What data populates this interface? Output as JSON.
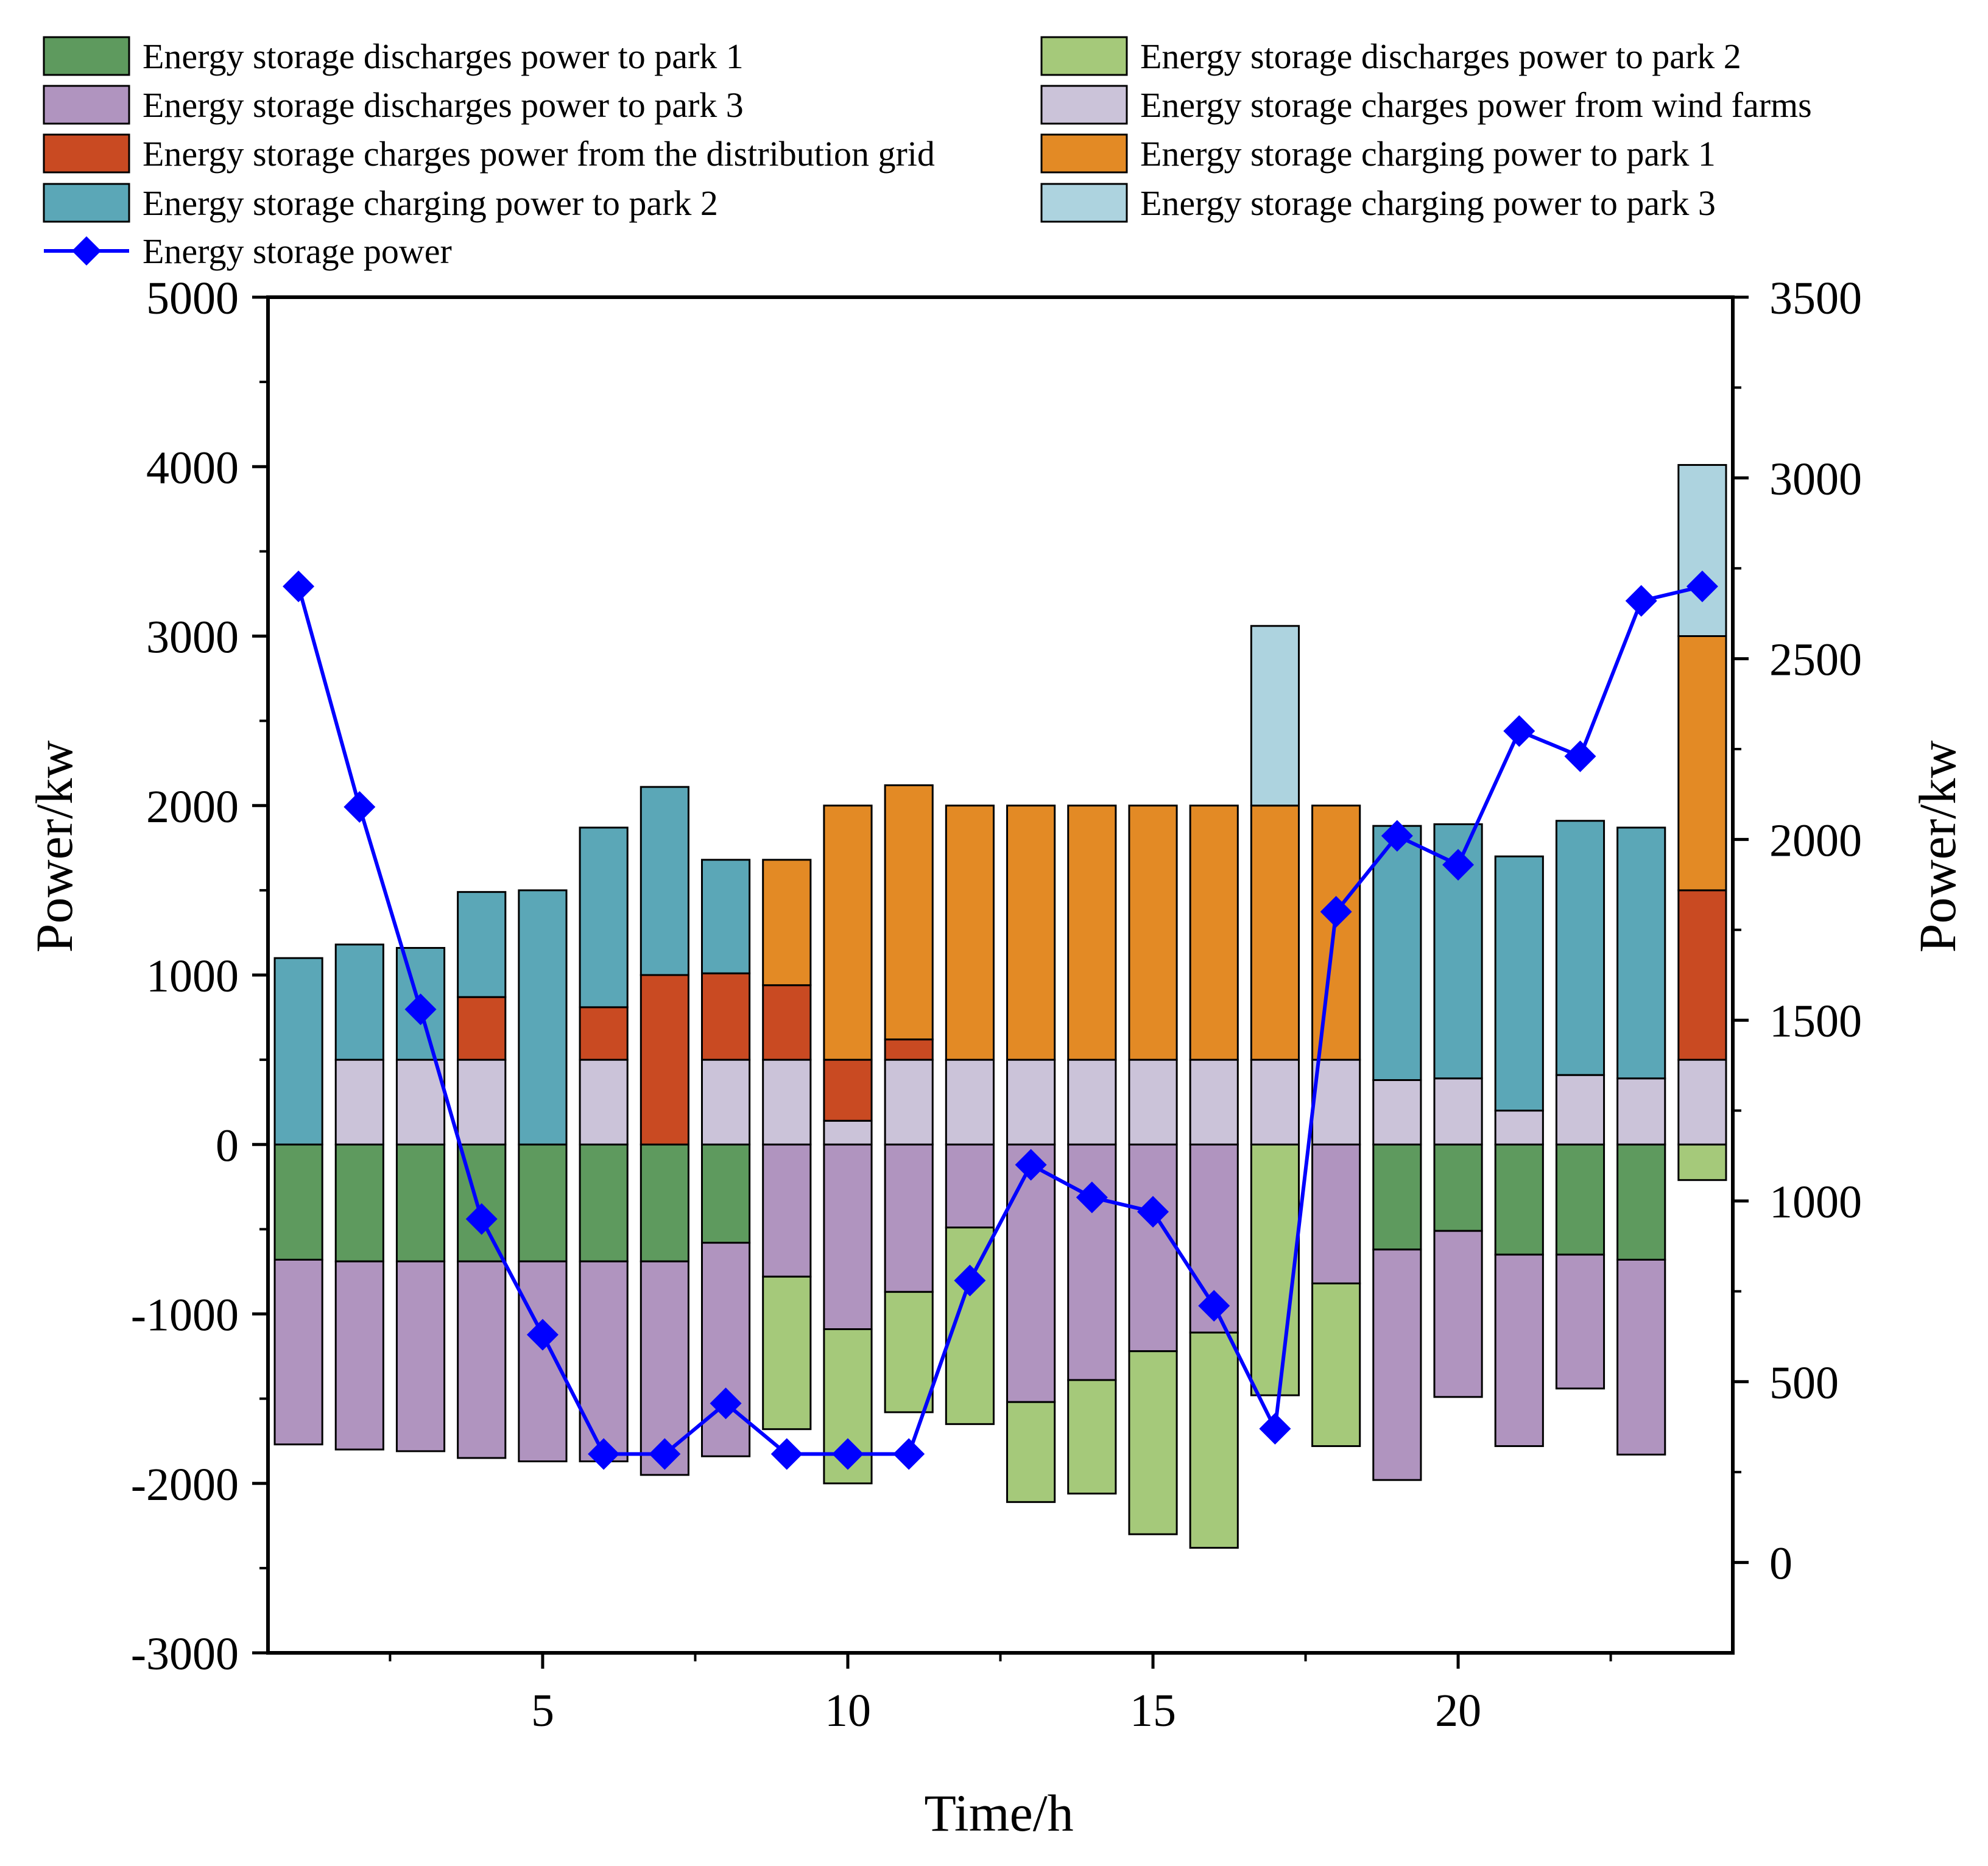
{
  "chart_data": {
    "type": "bar",
    "stacked": true,
    "xlabel": "Time/h",
    "ylabel": "Power/kw",
    "y2label": "Power/kw",
    "ylim": [
      -3000,
      5000
    ],
    "y2lim": [
      -250,
      3500
    ],
    "xlim": [
      0.5,
      24.5
    ],
    "yticks": [
      -3000,
      -2000,
      -1000,
      0,
      1000,
      2000,
      3000,
      4000,
      5000
    ],
    "y2ticks": [
      0,
      500,
      1000,
      1500,
      2000,
      2500,
      3000,
      3500
    ],
    "xticks": [
      5,
      10,
      15,
      20
    ],
    "x": [
      1,
      2,
      3,
      4,
      5,
      6,
      7,
      8,
      9,
      10,
      11,
      12,
      13,
      14,
      15,
      16,
      17,
      18,
      19,
      20,
      21,
      22,
      23,
      24
    ],
    "series": [
      {
        "name": "Energy storage discharges power to park 1",
        "color": "#5e9a5e",
        "values": [
          -680,
          -690,
          -690,
          -690,
          -690,
          -690,
          -690,
          -580,
          0,
          0,
          0,
          0,
          0,
          0,
          0,
          0,
          0,
          0,
          -620,
          -510,
          -650,
          -650,
          -680,
          0
        ]
      },
      {
        "name": "Energy storage discharges power to park 3",
        "color": "#b094bf",
        "values": [
          -1090,
          -1110,
          -1120,
          -1160,
          -1180,
          -1180,
          -1260,
          -1260,
          -780,
          -1090,
          -870,
          -490,
          -1520,
          -1390,
          -1220,
          -1110,
          0,
          -820,
          -1360,
          -980,
          -1130,
          -790,
          -1150,
          0
        ]
      },
      {
        "name": "Energy storage discharges power to park 2",
        "color": "#a5c97a",
        "values": [
          0,
          0,
          0,
          0,
          0,
          0,
          0,
          0,
          -900,
          -910,
          -710,
          -1160,
          -590,
          -670,
          -1080,
          -1270,
          -1480,
          -960,
          0,
          0,
          0,
          0,
          0,
          -210
        ]
      },
      {
        "name": "Energy storage charges power from wind farms",
        "color": "#cbc3d9",
        "values": [
          0,
          500,
          500,
          500,
          0,
          500,
          0,
          500,
          500,
          140,
          500,
          500,
          500,
          500,
          500,
          500,
          500,
          500,
          380,
          390,
          200,
          410,
          390,
          500
        ]
      },
      {
        "name": "Energy storage charges power from the distribution grid",
        "color": "#c94a22",
        "values": [
          0,
          0,
          0,
          370,
          0,
          310,
          1000,
          510,
          440,
          360,
          120,
          0,
          0,
          0,
          0,
          0,
          0,
          0,
          0,
          0,
          0,
          0,
          0,
          1000
        ]
      },
      {
        "name": "Energy storage charging power to park 1",
        "color": "#e38a25",
        "values": [
          0,
          0,
          0,
          0,
          0,
          0,
          0,
          0,
          740,
          1500,
          1500,
          1500,
          1500,
          1500,
          1500,
          1500,
          1500,
          1500,
          0,
          0,
          0,
          0,
          0,
          1500
        ]
      },
      {
        "name": "Energy storage charging power to park 2",
        "color": "#5ba7b7",
        "values": [
          1100,
          680,
          660,
          620,
          1500,
          1060,
          1110,
          670,
          0,
          0,
          0,
          0,
          0,
          0,
          0,
          0,
          0,
          0,
          1500,
          1500,
          1500,
          1500,
          1480,
          0
        ]
      },
      {
        "name": "Energy storage charging power to park 3",
        "color": "#add3df",
        "values": [
          0,
          0,
          0,
          0,
          0,
          0,
          0,
          0,
          0,
          0,
          0,
          0,
          0,
          0,
          0,
          0,
          1060,
          0,
          0,
          0,
          0,
          0,
          0,
          1010
        ]
      }
    ],
    "line_series": {
      "name": "Energy storage power",
      "color": "#0000ff",
      "axis": "right",
      "values": [
        2700,
        2090,
        1530,
        950,
        630,
        300,
        300,
        440,
        300,
        300,
        300,
        780,
        1100,
        1010,
        970,
        710,
        370,
        1800,
        2010,
        1930,
        2300,
        2230,
        2660,
        2700
      ]
    },
    "legend": {
      "position": "top",
      "entries": [
        "Energy storage discharges power to park 1",
        "Energy storage discharges power to park 2",
        "Energy storage discharges power to park 3",
        "Energy storage charges power from wind farms",
        "Energy storage charges power from the distribution grid",
        "Energy storage charging power to park 1",
        "Energy storage charging power to park 2",
        "Energy storage charging power to park 3",
        "Energy storage power"
      ]
    }
  }
}
